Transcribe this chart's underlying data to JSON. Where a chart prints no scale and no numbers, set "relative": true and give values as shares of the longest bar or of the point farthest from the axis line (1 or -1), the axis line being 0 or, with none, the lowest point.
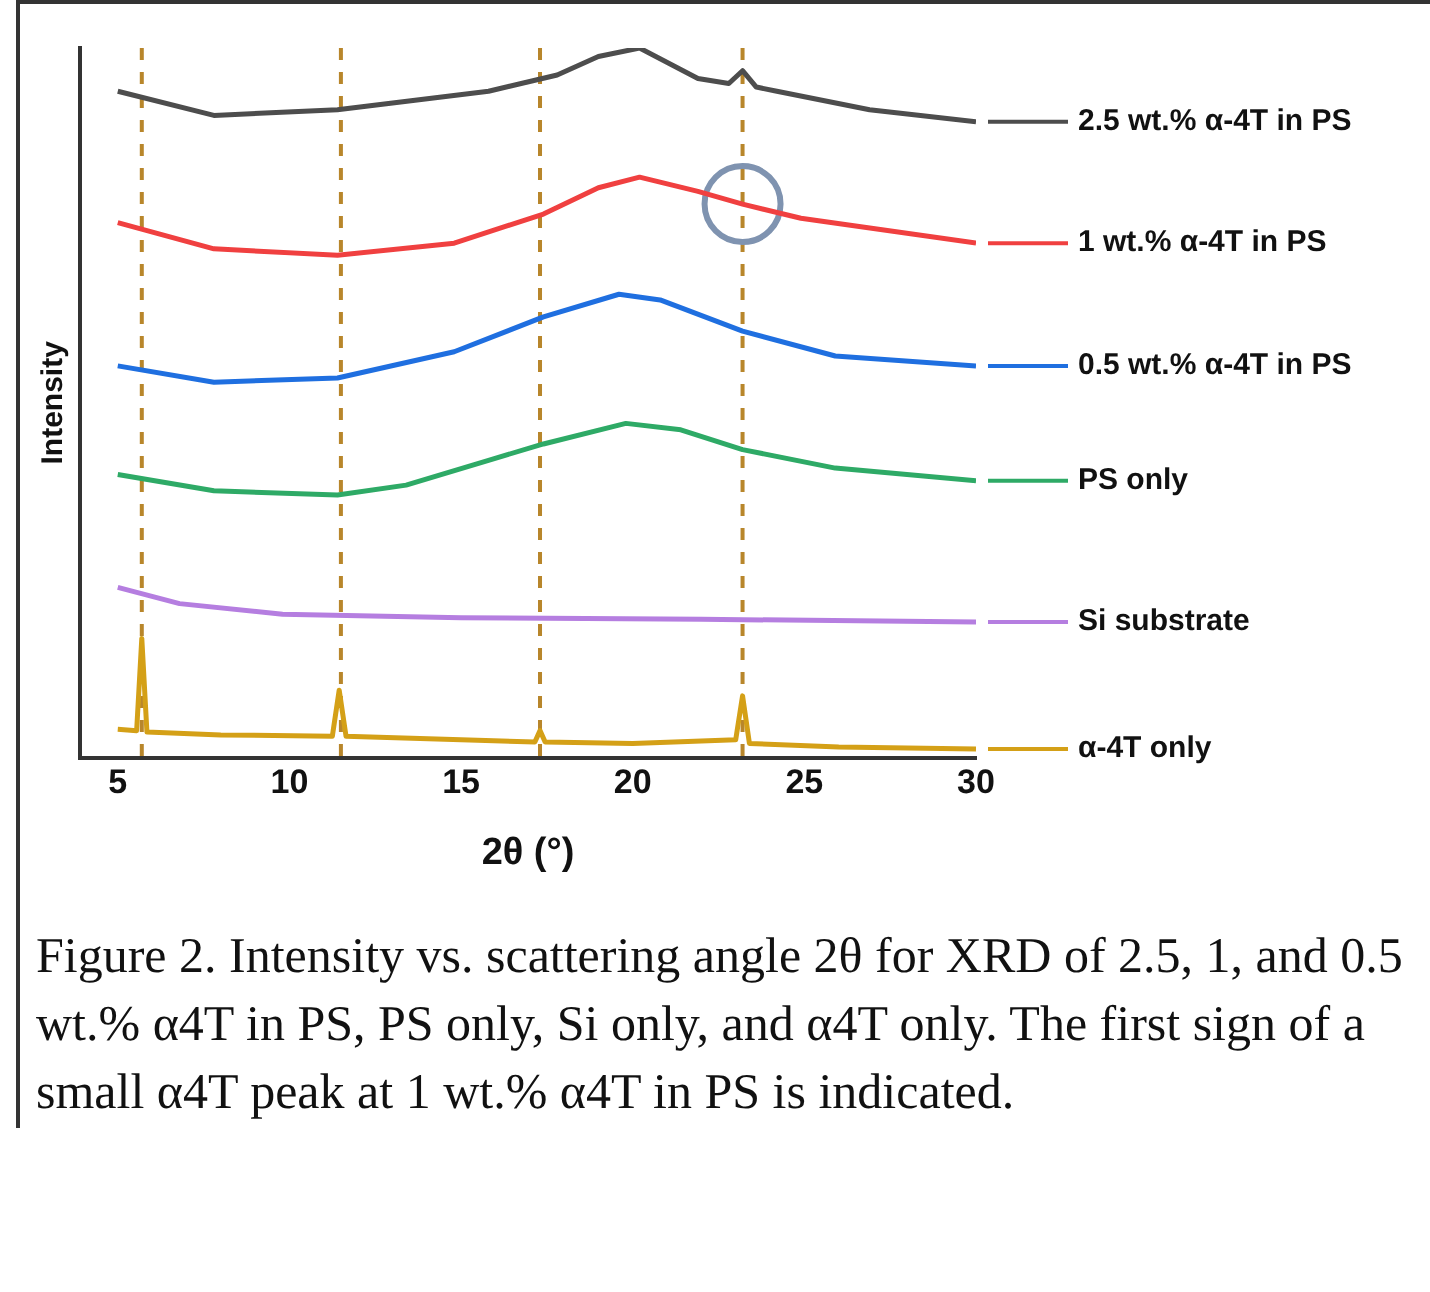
{
  "chart_data": {
    "type": "line",
    "relative": true,
    "xlabel": "2θ (°)",
    "ylabel": "Intensity",
    "xlim": [
      3.9,
      30
    ],
    "xticks": [
      5,
      10,
      15,
      20,
      25,
      30
    ],
    "grid": false,
    "legend": "right",
    "marker": "none",
    "tick_labels": "x",
    "series": [
      {
        "name": "2.5 wt.% α-4T in PS",
        "color": "#4d4d4d",
        "x": [
          5,
          7.8,
          11.4,
          15.8,
          17.8,
          19,
          20.2,
          21.9,
          22.8,
          23.2,
          23.6,
          24.2,
          26.9,
          30
        ],
        "values": [
          0.939,
          0.905,
          0.913,
          0.939,
          0.962,
          0.988,
          1,
          0.957,
          0.95,
          0.968,
          0.945,
          0.939,
          0.913,
          0.896
        ]
      },
      {
        "name": "1 wt.% α-4T in PS",
        "color": "#f04040",
        "x": [
          5,
          7.8,
          11.4,
          14.8,
          17.4,
          19,
          20.2,
          21.9,
          23.2,
          24.9,
          30
        ],
        "values": [
          0.754,
          0.717,
          0.708,
          0.725,
          0.766,
          0.803,
          0.818,
          0.798,
          0.78,
          0.76,
          0.725
        ]
      },
      {
        "name": "0.5 wt.% α-4T in PS",
        "color": "#1f6fe0",
        "x": [
          5,
          7.8,
          11.4,
          14.8,
          17.4,
          19.6,
          20.8,
          23.2,
          25.9,
          30
        ],
        "values": [
          0.552,
          0.529,
          0.535,
          0.572,
          0.621,
          0.653,
          0.645,
          0.601,
          0.566,
          0.552
        ]
      },
      {
        "name": "PS only",
        "color": "#2eaa66",
        "x": [
          5,
          7.8,
          11.4,
          13.4,
          15.8,
          17.4,
          19.8,
          21.4,
          23.2,
          25.9,
          30
        ],
        "values": [
          0.399,
          0.376,
          0.37,
          0.384,
          0.419,
          0.442,
          0.471,
          0.462,
          0.434,
          0.408,
          0.39
        ]
      },
      {
        "name": "Si substrate",
        "color": "#b57ee0",
        "x": [
          5,
          6.8,
          9.8,
          15,
          22,
          30
        ],
        "values": [
          0.24,
          0.217,
          0.202,
          0.197,
          0.195,
          0.191
        ]
      },
      {
        "name": "α-4T only",
        "color": "#d4a017",
        "x": [
          5,
          5.55,
          5.7,
          5.85,
          8,
          11.25,
          11.45,
          11.65,
          15,
          17.15,
          17.3,
          17.45,
          20,
          23.0,
          23.2,
          23.4,
          26,
          30
        ],
        "values": [
          0.04,
          0.038,
          0.168,
          0.036,
          0.032,
          0.03,
          0.095,
          0.03,
          0.025,
          0.022,
          0.038,
          0.022,
          0.02,
          0.025,
          0.087,
          0.02,
          0.015,
          0.012
        ]
      },
      {
        "type": "scatter",
        "color": "#7f93b0",
        "marker": "circle",
        "x": [
          23.2
        ],
        "values": [
          0.78
        ]
      }
    ],
    "ref_lines": [
      {
        "axis": "x",
        "value": 5.7,
        "color": "#b8862b",
        "line_style": "dashed"
      },
      {
        "axis": "x",
        "value": 11.5,
        "color": "#b8862b",
        "line_style": "dashed"
      },
      {
        "axis": "x",
        "value": 17.3,
        "color": "#b8862b",
        "line_style": "dashed"
      },
      {
        "axis": "x",
        "value": 23.2,
        "color": "#b8862b",
        "line_style": "dashed"
      }
    ],
    "annotations": [
      "Figure 2. Intensity vs. scattering angle 2θ for XRD of 2.5, 1, and 0.5 wt.% α4T in PS, PS only, Si only, and α4T only. The first sign of a small α4T peak at 1 wt.% α4T in PS is indicated."
    ]
  }
}
